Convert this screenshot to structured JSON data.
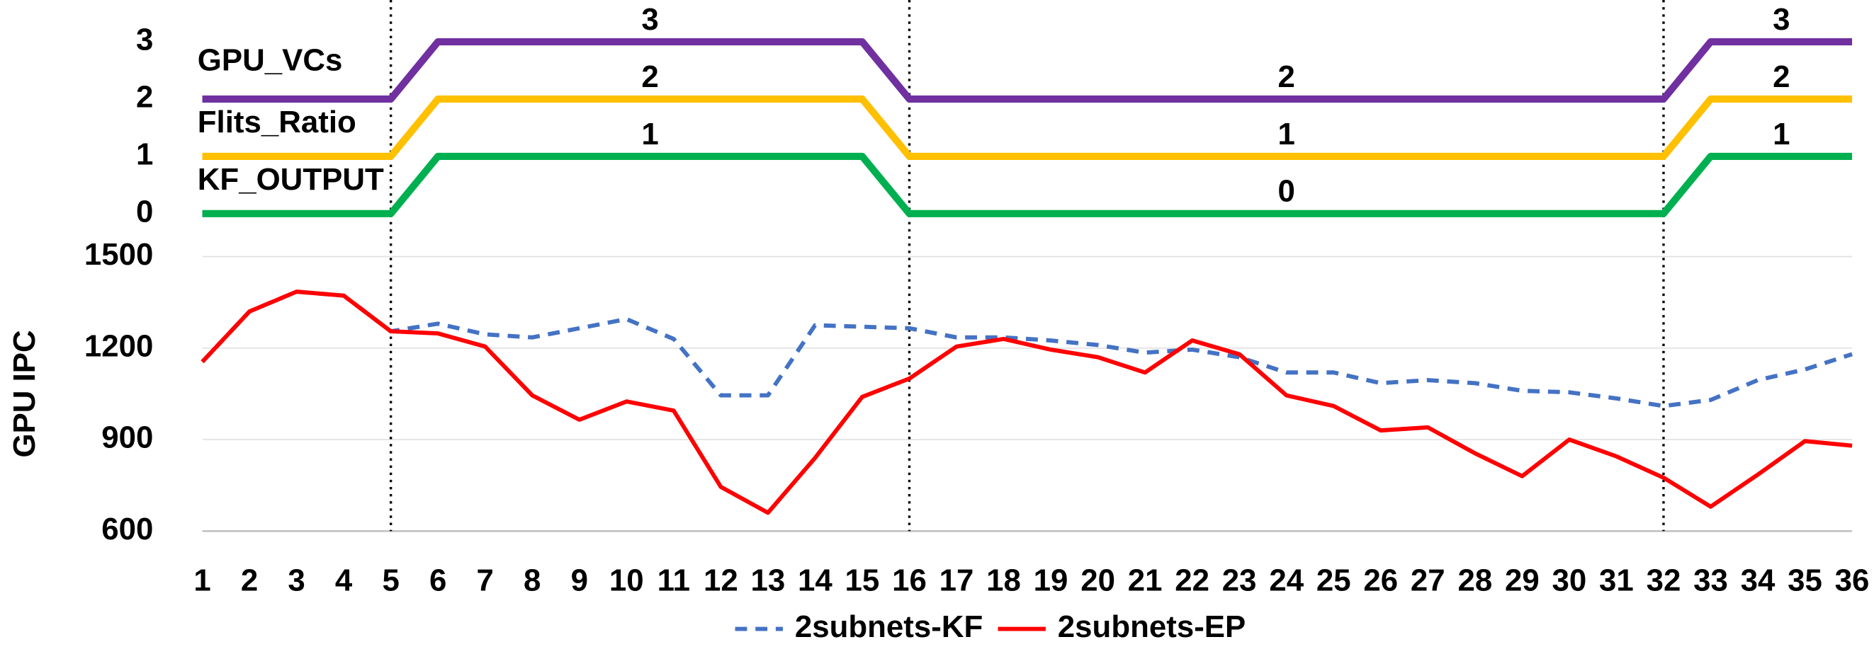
{
  "chart_data": [
    {
      "type": "step",
      "ylim": [
        0,
        3
      ],
      "yticks": [
        0,
        1,
        2,
        3
      ],
      "x": [
        1,
        2,
        3,
        4,
        5,
        6,
        7,
        8,
        9,
        10,
        11,
        12,
        13,
        14,
        15,
        16,
        17,
        18,
        19,
        20,
        21,
        22,
        23,
        24,
        25,
        26,
        27,
        28,
        29,
        30,
        31,
        32,
        33,
        34,
        35,
        36
      ],
      "xlim": [
        1,
        36
      ],
      "vlines": [
        5,
        16,
        32
      ],
      "series": [
        {
          "name": "GPU_VCs",
          "color": "#7030a0",
          "values": [
            2,
            2,
            2,
            2,
            2,
            3,
            3,
            3,
            3,
            3,
            3,
            3,
            3,
            3,
            3,
            2,
            2,
            2,
            2,
            2,
            2,
            2,
            2,
            2,
            2,
            2,
            2,
            2,
            2,
            2,
            2,
            2,
            3,
            3,
            3,
            3
          ]
        },
        {
          "name": "Flits_Ratio",
          "color": "#ffc000",
          "values": [
            1,
            1,
            1,
            1,
            1,
            2,
            2,
            2,
            2,
            2,
            2,
            2,
            2,
            2,
            2,
            1,
            1,
            1,
            1,
            1,
            1,
            1,
            1,
            1,
            1,
            1,
            1,
            1,
            1,
            1,
            1,
            1,
            2,
            2,
            2,
            2
          ]
        },
        {
          "name": "KF_OUTPUT",
          "color": "#00b050",
          "values": [
            0,
            0,
            0,
            0,
            0,
            1,
            1,
            1,
            1,
            1,
            1,
            1,
            1,
            1,
            1,
            0,
            0,
            0,
            0,
            0,
            0,
            0,
            0,
            0,
            0,
            0,
            0,
            0,
            0,
            0,
            0,
            0,
            1,
            1,
            1,
            1
          ]
        }
      ]
    },
    {
      "type": "line",
      "ylabel": "GPU IPC",
      "ylim": [
        600,
        1500
      ],
      "yticks": [
        600,
        900,
        1200,
        1500
      ],
      "grid": true,
      "x": [
        1,
        2,
        3,
        4,
        5,
        6,
        7,
        8,
        9,
        10,
        11,
        12,
        13,
        14,
        15,
        16,
        17,
        18,
        19,
        20,
        21,
        22,
        23,
        24,
        25,
        26,
        27,
        28,
        29,
        30,
        31,
        32,
        33,
        34,
        35,
        36
      ],
      "xlim": [
        1,
        36
      ],
      "xticks": [
        1,
        2,
        3,
        4,
        5,
        6,
        7,
        8,
        9,
        10,
        11,
        12,
        13,
        14,
        15,
        16,
        17,
        18,
        19,
        20,
        21,
        22,
        23,
        24,
        25,
        26,
        27,
        28,
        29,
        30,
        31,
        32,
        33,
        34,
        35,
        36
      ],
      "series": [
        {
          "name": "2subnets-KF",
          "color": "#4472c4",
          "dashed": true,
          "values": [
            1155,
            1320,
            1385,
            1372,
            1255,
            1280,
            1245,
            1235,
            1265,
            1295,
            1230,
            1045,
            1045,
            1275,
            1270,
            1265,
            1235,
            1235,
            1225,
            1210,
            1185,
            1195,
            1170,
            1120,
            1120,
            1085,
            1095,
            1085,
            1060,
            1055,
            1035,
            1010,
            1030,
            1095,
            1130,
            1180
          ]
        },
        {
          "name": "2subnets-EP",
          "color": "#ff0000",
          "values": [
            1155,
            1320,
            1385,
            1372,
            1255,
            1248,
            1205,
            1045,
            965,
            1025,
            995,
            745,
            660,
            840,
            1040,
            1100,
            1205,
            1230,
            1195,
            1170,
            1120,
            1225,
            1180,
            1045,
            1010,
            930,
            940,
            855,
            780,
            900,
            845,
            775,
            680,
            785,
            895,
            880
          ]
        }
      ]
    }
  ]
}
